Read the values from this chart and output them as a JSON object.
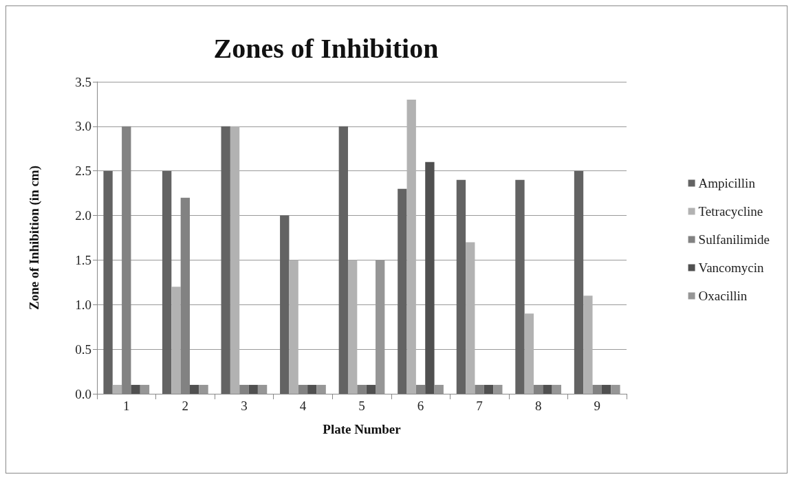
{
  "chart_data": {
    "type": "bar",
    "title": "Zones of Inhibition",
    "xlabel": "Plate Number",
    "ylabel": "Zone of Inhibition (in cm)",
    "categories": [
      "1",
      "2",
      "3",
      "4",
      "5",
      "6",
      "7",
      "8",
      "9"
    ],
    "series": [
      {
        "name": "Ampicillin",
        "color": "#636363",
        "values": [
          2.5,
          2.5,
          3.0,
          2.0,
          3.0,
          2.3,
          2.4,
          2.4,
          2.5
        ]
      },
      {
        "name": "Tetracycline",
        "color": "#b2b2b2",
        "values": [
          0.1,
          1.2,
          3.0,
          1.5,
          1.5,
          3.3,
          1.7,
          0.9,
          1.1
        ]
      },
      {
        "name": "Sulfanilimide",
        "color": "#828282",
        "values": [
          3.0,
          2.2,
          0.1,
          0.1,
          0.1,
          0.1,
          0.1,
          0.1,
          0.1
        ]
      },
      {
        "name": "Vancomycin",
        "color": "#505050",
        "values": [
          0.1,
          0.1,
          0.1,
          0.1,
          0.1,
          2.6,
          0.1,
          0.1,
          0.1
        ]
      },
      {
        "name": "Oxacillin",
        "color": "#969696",
        "values": [
          0.1,
          0.1,
          0.1,
          0.1,
          1.5,
          0.1,
          0.1,
          0.1,
          0.1
        ]
      }
    ],
    "ylim": [
      0,
      3.5
    ],
    "yticks": [
      {
        "value": 0,
        "label": "0.0"
      },
      {
        "value": 0.5,
        "label": "0.5"
      },
      {
        "value": 1,
        "label": "1.0"
      },
      {
        "value": 1.5,
        "label": "1.5"
      },
      {
        "value": 2,
        "label": "2.0"
      },
      {
        "value": 2.5,
        "label": "2.5"
      },
      {
        "value": 3,
        "label": "3.0"
      },
      {
        "value": 3.5,
        "label": "3.5"
      }
    ],
    "grid": "y",
    "legend": "right"
  }
}
